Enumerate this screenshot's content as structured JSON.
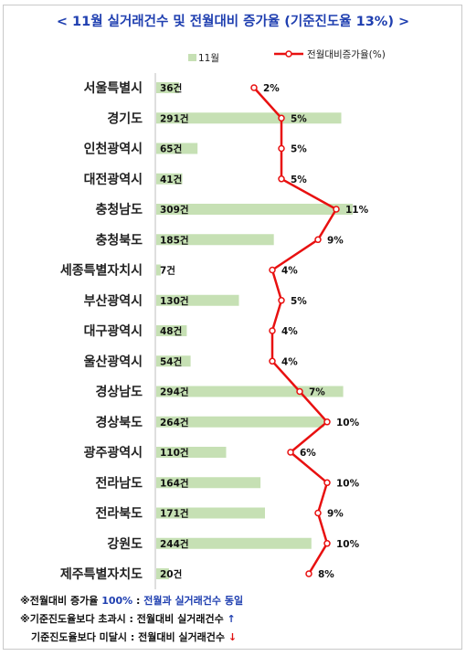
{
  "title": "< 11월 실거래건수 및 전월대비 증가율 (기준진도율 13%) >",
  "legend": {
    "bar_label": "11월",
    "line_label": "전월대비증가율(%)"
  },
  "colors": {
    "bar": "#c6e0b4",
    "line": "#e81010",
    "marker_fill": "#ffffff",
    "title": "#1f3fb0"
  },
  "chart_data": {
    "type": "bar",
    "orientation": "horizontal",
    "title": "< 11월 실거래건수 및 전월대비 증가율 (기준진도율 13%) >",
    "categories": [
      "서울특별시",
      "경기도",
      "인천광역시",
      "대전광역시",
      "충청남도",
      "충청북도",
      "세종특별자치시",
      "부산광역시",
      "대구광역시",
      "울산광역시",
      "경상남도",
      "경상북도",
      "광주광역시",
      "전라남도",
      "전라북도",
      "강원도",
      "제주특별자치도"
    ],
    "series": [
      {
        "name": "11월",
        "type": "bar",
        "values": [
          36,
          291,
          65,
          41,
          309,
          185,
          7,
          130,
          48,
          54,
          294,
          264,
          110,
          164,
          171,
          244,
          20
        ]
      },
      {
        "name": "전월대비증가율(%)",
        "type": "line",
        "values": [
          2,
          5,
          5,
          5,
          11,
          9,
          4,
          5,
          4,
          4,
          7,
          10,
          6,
          10,
          9,
          10,
          8
        ]
      }
    ],
    "value_labels": [
      "36건",
      "291건",
      "65건",
      "41건",
      "309건",
      "185건",
      "7건",
      "130건",
      "48건",
      "54건",
      "294건",
      "264건",
      "110건",
      "164건",
      "171건",
      "244건",
      "20건"
    ],
    "pct_labels": [
      "2%",
      "5%",
      "5%",
      "5%",
      "11%",
      "9%",
      "4%",
      "5%",
      "4%",
      "4%",
      "7%",
      "10%",
      "6%",
      "10%",
      "9%",
      "10%",
      "8%"
    ],
    "legend_position": "top-right",
    "grid": false
  },
  "notes": {
    "line1_prefix": "※전월대비 증가율 ",
    "line1_value": "100%",
    "line1_mid": " : ",
    "line1_suffix": "전월과 실거래건수 동일",
    "line2": "※기준진도율보다 초과시 : 전월대비 실거래건수 ",
    "line2_arrow": "↑",
    "line3": "기준진도율보다 미달시 : 전월대비 실거래건수 ",
    "line3_arrow": "↓"
  }
}
